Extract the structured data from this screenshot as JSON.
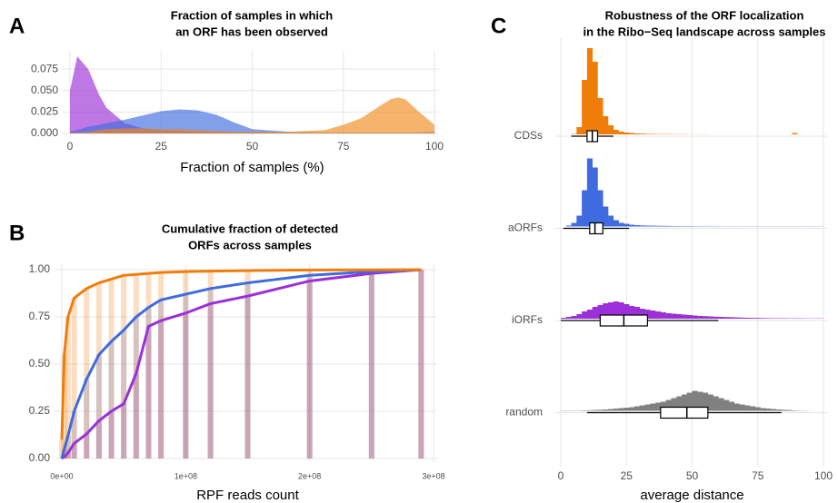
{
  "chart_data": [
    {
      "type": "area",
      "panel_label": "A",
      "title": [
        "Fraction of samples in which",
        "an ORF has been observed"
      ],
      "x_label": "Fraction of samples (%)",
      "x": [
        0,
        2,
        5,
        8,
        10,
        15,
        20,
        25,
        30,
        35,
        40,
        45,
        50,
        60,
        70,
        75,
        80,
        85,
        88,
        90,
        92,
        95,
        100
      ],
      "series": [
        {
          "color": "#9b30d9",
          "values": [
            0.05,
            0.09,
            0.075,
            0.045,
            0.03,
            0.012,
            0.006,
            0.004,
            0.003,
            0.002,
            0.002,
            0.001,
            0.001,
            0,
            0,
            0,
            0,
            0,
            0,
            0,
            0,
            0,
            0
          ]
        },
        {
          "color": "#3f6be0",
          "values": [
            0.002,
            0.004,
            0.008,
            0.01,
            0.012,
            0.016,
            0.021,
            0.026,
            0.028,
            0.027,
            0.022,
            0.013,
            0.005,
            0.002,
            0.001,
            0.001,
            0.001,
            0.001,
            0.001,
            0.001,
            0.001,
            0.001,
            0.002
          ]
        },
        {
          "color": "#f08a1c",
          "values": [
            0.001,
            0.001,
            0.002,
            0.004,
            0.005,
            0.006,
            0.006,
            0.005,
            0.005,
            0.004,
            0.003,
            0.002,
            0.002,
            0.002,
            0.004,
            0.01,
            0.018,
            0.032,
            0.04,
            0.042,
            0.04,
            0.028,
            0.01
          ]
        }
      ],
      "xlim": [
        0,
        100
      ],
      "xticks": [
        0,
        25,
        50,
        75,
        100
      ],
      "ylim": [
        0,
        0.09
      ],
      "yticks": [
        {
          "value": 0,
          "label": "0.000"
        },
        {
          "value": 0.025,
          "label": "0.025"
        },
        {
          "value": 0.05,
          "label": "0.050"
        },
        {
          "value": 0.075,
          "label": "0.075"
        }
      ],
      "grid": true
    },
    {
      "type": "line",
      "panel_label": "B",
      "title": [
        "Cumulative fraction of detected",
        "ORFs across samples"
      ],
      "x_label": "RPF reads count",
      "x": [
        0,
        2000000,
        5000000,
        10000000,
        20000000,
        30000000,
        40000000,
        50000000,
        60000000,
        70000000,
        80000000,
        100000000,
        120000000,
        150000000,
        200000000,
        250000000,
        290000000
      ],
      "series": [
        {
          "color": "#9b30d9",
          "values": [
            0,
            0.01,
            0.03,
            0.08,
            0.13,
            0.2,
            0.25,
            0.29,
            0.45,
            0.7,
            0.73,
            0.77,
            0.82,
            0.86,
            0.94,
            0.98,
            1
          ]
        },
        {
          "color": "#3f6be0",
          "values": [
            0,
            0.05,
            0.12,
            0.25,
            0.42,
            0.55,
            0.62,
            0.68,
            0.75,
            0.8,
            0.84,
            0.87,
            0.9,
            0.93,
            0.97,
            0.99,
            1
          ]
        },
        {
          "color": "#f07d0a",
          "values": [
            0.1,
            0.55,
            0.75,
            0.85,
            0.9,
            0.93,
            0.95,
            0.97,
            0.975,
            0.98,
            0.985,
            0.99,
            0.992,
            0.995,
            0.998,
            0.999,
            1
          ]
        }
      ],
      "xlim": [
        0,
        300000000
      ],
      "xticks": [
        {
          "value": 0,
          "label": "0e+00"
        },
        {
          "value": 100000000,
          "label": "1e+08"
        },
        {
          "value": 200000000,
          "label": "2e+08"
        },
        {
          "value": 300000000,
          "label": "3e+08"
        }
      ],
      "ylim": [
        0,
        1
      ],
      "yticks": [
        {
          "value": 0,
          "label": "0.00"
        },
        {
          "value": 0.25,
          "label": "0.25"
        },
        {
          "value": 0.5,
          "label": "0.50"
        },
        {
          "value": 0.75,
          "label": "0.75"
        },
        {
          "value": 1,
          "label": "1.00"
        }
      ],
      "grid": true
    },
    {
      "type": "histogram",
      "panel_label": "C",
      "title": [
        "Robustness of the ORF localization",
        "in the Ribo−Seq landscape across samples"
      ],
      "x_label": "average distance",
      "categories": [
        "CDSs",
        "aORFs",
        "iORFs",
        "random"
      ],
      "bins": [
        0,
        2,
        4,
        6,
        8,
        10,
        12,
        14,
        16,
        18,
        20,
        22,
        24,
        26,
        28,
        30,
        32,
        34,
        36,
        38,
        40,
        42,
        44,
        46,
        48,
        50,
        52,
        54,
        56,
        58,
        60,
        62,
        64,
        66,
        68,
        70,
        72,
        74,
        76,
        78,
        80,
        82,
        84,
        86,
        88,
        90,
        92,
        94,
        96,
        98,
        100
      ],
      "series": [
        {
          "color": "#f07d0a",
          "values": [
            0,
            0,
            0.5,
            8,
            60,
            95,
            80,
            40,
            20,
            10,
            5,
            3,
            2,
            1.5,
            1,
            0.8,
            0.6,
            0.5,
            0.4,
            0.3,
            0.3,
            0.2,
            0.2,
            0.2,
            0.1,
            0.1,
            0.1,
            0.1,
            0,
            0,
            0,
            0,
            0,
            0,
            0,
            0,
            0,
            0,
            0,
            0,
            0,
            0,
            0,
            0,
            1.5,
            0,
            0,
            0,
            0,
            0
          ],
          "box": {
            "whisker_low": 4,
            "q1": 10,
            "median": 12,
            "q3": 14,
            "whisker_high": 20
          }
        },
        {
          "color": "#3f6be0",
          "values": [
            0,
            1,
            4,
            12,
            40,
            75,
            65,
            40,
            22,
            12,
            7,
            4,
            3,
            2,
            1.5,
            1.2,
            1,
            0.9,
            0.8,
            0.7,
            0.6,
            0.5,
            0.5,
            0.4,
            0.4,
            0.3,
            0.3,
            0.3,
            0.3,
            0.3,
            0.2,
            0.2,
            0.2,
            0.2,
            0.2,
            0.2,
            0.2,
            0.2,
            0.2,
            0.2,
            0.2,
            0.2,
            0.2,
            0.2,
            0.2,
            0.2,
            0.2,
            0.2,
            0.2,
            0.2
          ],
          "box": {
            "whisker_low": 1,
            "q1": 11,
            "median": 13,
            "q3": 16,
            "whisker_high": 26
          }
        },
        {
          "color": "#9b30d9",
          "values": [
            1,
            2,
            3,
            5,
            8,
            10,
            13,
            15,
            17,
            18,
            19,
            18,
            16,
            14,
            13,
            11,
            10,
            9,
            8,
            7,
            6,
            5.5,
            5,
            4.5,
            4,
            3.5,
            3,
            2.8,
            2.5,
            2.2,
            2,
            1.8,
            1.6,
            1.4,
            1.2,
            1,
            0.9,
            0.8,
            0.7,
            0.6,
            0.5,
            0.5,
            0.5,
            0.4,
            0.4,
            0.4,
            0.3,
            0.3,
            0.3,
            0.3
          ],
          "box": {
            "whisker_low": 0,
            "q1": 15,
            "median": 24,
            "q3": 33,
            "whisker_high": 60
          }
        },
        {
          "color": "#808080",
          "values": [
            0.3,
            0.3,
            0.3,
            0.3,
            0.5,
            0.7,
            1,
            1.2,
            1.5,
            2,
            2.5,
            3,
            3.5,
            4,
            5,
            6,
            7,
            8,
            9,
            10,
            12,
            14,
            16,
            18,
            20,
            22,
            21,
            20,
            18,
            16,
            14,
            12,
            10,
            8,
            7,
            6,
            5,
            4,
            3,
            2.5,
            2,
            1.5,
            1.2,
            1,
            0.5,
            0.3,
            0.2,
            0.1,
            0,
            0
          ],
          "box": {
            "whisker_low": 10,
            "q1": 38,
            "median": 48,
            "q3": 56,
            "whisker_high": 84
          }
        }
      ],
      "xlim": [
        0,
        100
      ],
      "xticks": [
        0,
        25,
        50,
        75,
        100
      ],
      "grid": true
    }
  ]
}
